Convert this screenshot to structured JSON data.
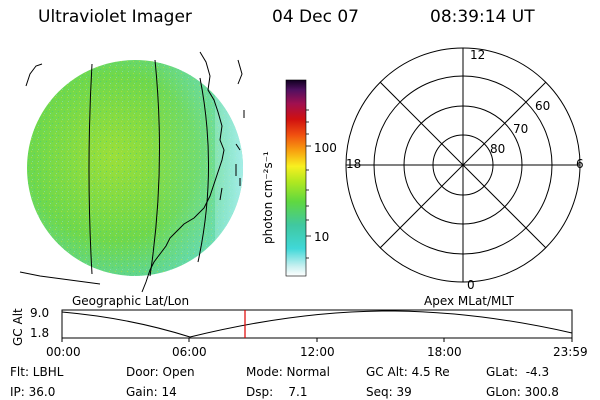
{
  "header": {
    "instrument": "Ultraviolet Imager",
    "date": "04 Dec 07",
    "time": "08:39:14 UT"
  },
  "colorbar": {
    "label": "photon cm⁻²s⁻¹",
    "ticks": [
      "100",
      "10"
    ]
  },
  "polar_plot": {
    "mlt_labels": {
      "top": "12",
      "left": "18",
      "right": "6",
      "bottom": "0"
    },
    "lat_labels": [
      "60",
      "70",
      "80"
    ]
  },
  "map_labels": {
    "left": "Geographic Lat/Lon",
    "right": "Apex MLat/MLT"
  },
  "altitude_plot": {
    "ylabel": "GC Alt",
    "ytick_top": "9.0",
    "ytick_bottom": "1.8",
    "x_ticks": [
      "00:00",
      "06:00",
      "12:00",
      "18:00",
      "23:59"
    ],
    "current_time_marker": "08:39"
  },
  "info_rows": [
    [
      "Flt: LBHL",
      "Door: Open",
      "Mode: Normal",
      "GC Alt: 4.5 Re",
      "GLat:  -4.3"
    ],
    [
      "IP: 36.0",
      "Gain: 14",
      "Dsp:    7.1",
      "Seq: 39",
      "GLon: 300.8"
    ]
  ],
  "colors": {
    "marker": "#e00000",
    "image_main": "#6cd84a",
    "image_low": "#7fe8d8"
  }
}
